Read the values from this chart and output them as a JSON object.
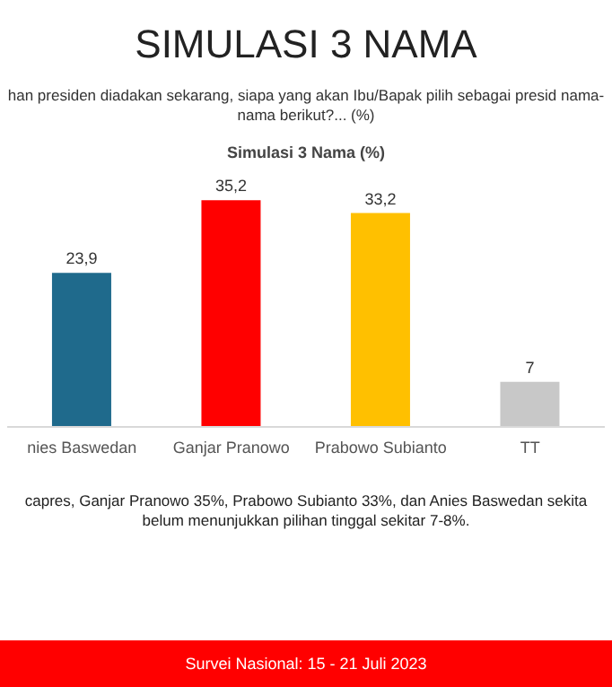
{
  "chart_data": {
    "type": "bar",
    "title": "SIMULASI 3 NAMA",
    "subtitle": "han presiden diadakan sekarang, siapa yang akan Ibu/Bapak pilih sebagai presid nama-nama berikut?... (%)",
    "categories": [
      "nies Baswedan",
      "Ganjar Pranowo",
      "Prabowo Subianto",
      "TT"
    ],
    "values": [
      23.9,
      35.2,
      33.2,
      7
    ],
    "colors": [
      "#1f6a8c",
      "#ff0000",
      "#ffc000",
      "#c8c8c8"
    ],
    "value_labels": [
      "23,9",
      "35,2",
      "33,2",
      "7"
    ],
    "annotations": [
      "Simulasi 3 Nama (%)",
      "capres, Ganjar Pranowo 35%, Prabowo Subianto 33%, dan Anies Baswedan sekita belum menunjukkan pilihan tinggal sekitar 7-8%.",
      "Survei Nasional: 15 - 21 Juli 2023"
    ],
    "grid": false,
    "legend": false
  }
}
